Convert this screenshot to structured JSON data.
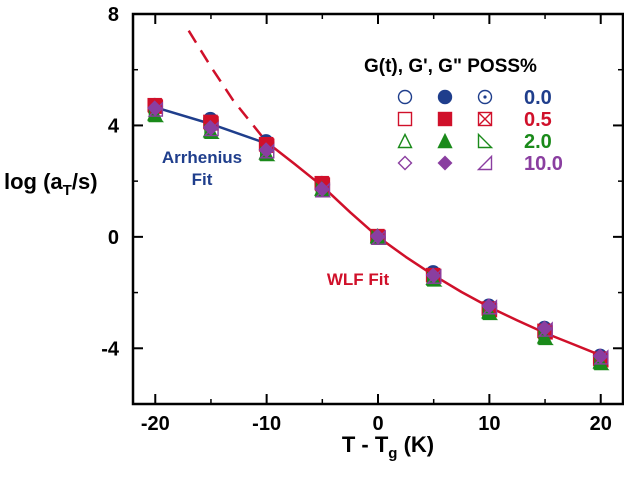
{
  "chart_data": {
    "type": "scatter",
    "xlabel_main": "T - T",
    "xlabel_sub": "g",
    "xlabel_end": " (K)",
    "ylabel_main": "log (a",
    "ylabel_sub": "T",
    "ylabel_end": "/s)",
    "xlim": [
      -22,
      22
    ],
    "ylim": [
      -6,
      8
    ],
    "xticks": [
      -20,
      -10,
      0,
      10,
      20
    ],
    "xtick_labels": [
      "-20",
      "-10",
      "0",
      "10",
      "20"
    ],
    "yticks": [
      -4,
      0,
      4,
      8
    ],
    "ytick_labels": [
      "-4",
      "0",
      "4",
      "8"
    ],
    "legend": {
      "header": "G(t), G', G\" POSS%",
      "rows": [
        {
          "label": "0.0",
          "color": "#1f3e8c",
          "markers": [
            "circle-open",
            "circle-filled",
            "circle-dot"
          ]
        },
        {
          "label": "0.5",
          "color": "#d0102a",
          "markers": [
            "square-open",
            "square-filled",
            "square-cross"
          ]
        },
        {
          "label": "2.0",
          "color": "#1a8a1a",
          "markers": [
            "triangle-open",
            "triangle-filled",
            "right-triangle-open"
          ]
        },
        {
          "label": "10.0",
          "color": "#8a3ea0",
          "markers": [
            "diamond-open",
            "diamond-filled",
            "left-triangle-open"
          ]
        }
      ]
    },
    "x": [
      -20,
      -15,
      -10,
      -5,
      0,
      5,
      10,
      15,
      20
    ],
    "series": [
      {
        "poss": "0.0",
        "color": "#1f3e8c",
        "y": [
          4.7,
          4.2,
          3.4,
          1.9,
          0.0,
          -1.3,
          -2.5,
          -3.3,
          -4.3
        ]
      },
      {
        "poss": "0.5",
        "color": "#d0102a",
        "y": [
          4.7,
          4.1,
          3.3,
          1.9,
          0.0,
          -1.4,
          -2.6,
          -3.4,
          -4.4
        ]
      },
      {
        "poss": "2.0",
        "color": "#1a8a1a",
        "y": [
          4.4,
          3.8,
          3.0,
          1.7,
          0.0,
          -1.5,
          -2.7,
          -3.6,
          -4.5
        ]
      },
      {
        "poss": "10.0",
        "color": "#8a3ea0",
        "y": [
          4.6,
          3.9,
          3.1,
          1.7,
          0.0,
          -1.4,
          -2.5,
          -3.3,
          -4.3
        ]
      }
    ],
    "fits": [
      {
        "label_lines": [
          "Arrhenius",
          "Fit"
        ],
        "color": "#1f3e8c",
        "x": [
          -20,
          -15,
          -10
        ],
        "y": [
          4.65,
          4.05,
          3.35
        ]
      },
      {
        "label_lines": [
          "WLF Fit"
        ],
        "color": "#d0102a",
        "x": [
          -10,
          -7.5,
          -5,
          -2.5,
          0,
          2.5,
          5,
          7.5,
          10,
          12.5,
          15,
          17.5,
          20
        ],
        "y": [
          3.4,
          2.62,
          1.82,
          0.88,
          0.0,
          -0.72,
          -1.38,
          -1.98,
          -2.52,
          -3.0,
          -3.45,
          -3.85,
          -4.25
        ]
      },
      {
        "label_lines": [],
        "color": "#d0102a",
        "dashed": true,
        "x": [
          -17,
          -15,
          -13,
          -11,
          -10
        ],
        "y": [
          7.4,
          6.1,
          4.9,
          3.9,
          3.4
        ]
      }
    ]
  }
}
